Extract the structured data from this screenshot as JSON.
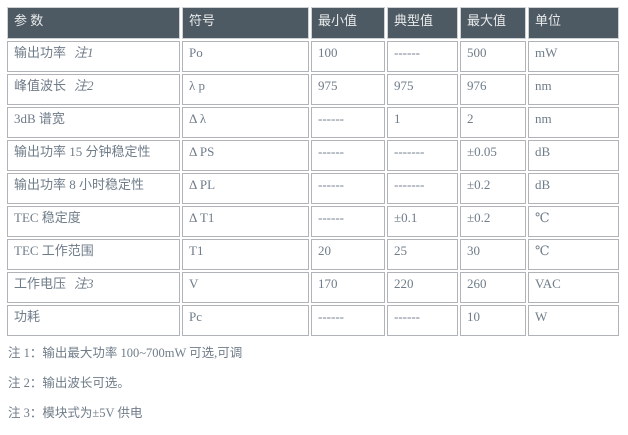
{
  "colors": {
    "header_bg": "#4d5a63",
    "header_text": "#e8eaeb",
    "body_text": "#6f7c89",
    "cell_border": "#b0b4b8"
  },
  "table": {
    "columns": [
      "参 数",
      "符号",
      "最小值",
      "典型值",
      "最大值",
      "单位"
    ],
    "rows": [
      {
        "param": "输出功率",
        "note_ref": "注1",
        "symbol": "Po",
        "min": "100",
        "typ": "------",
        "max": "500",
        "unit": "mW"
      },
      {
        "param": "峰值波长",
        "note_ref": "注2",
        "symbol": "λ p",
        "min": "975",
        "typ": "975",
        "max": "976",
        "unit": "nm"
      },
      {
        "param": "3dB 谱宽",
        "note_ref": "",
        "symbol": "Δ λ",
        "min": "------",
        "typ": "1",
        "max": "2",
        "unit": "nm"
      },
      {
        "param": "输出功率 15 分钟稳定性",
        "note_ref": "",
        "symbol": "Δ PS",
        "min": "------",
        "typ": "-------",
        "max": "±0.05",
        "unit": "dB"
      },
      {
        "param": "输出功率 8 小时稳定性",
        "note_ref": "",
        "symbol": "Δ PL",
        "min": "------",
        "typ": "-------",
        "max": "±0.2",
        "unit": "dB"
      },
      {
        "param": "TEC 稳定度",
        "note_ref": "",
        "symbol": "Δ T1",
        "min": "------",
        "typ": "±0.1",
        "max": "±0.2",
        "unit": "℃"
      },
      {
        "param": "TEC 工作范围",
        "note_ref": "",
        "symbol": "T1",
        "min": "20",
        "typ": "25",
        "max": "30",
        "unit": "℃"
      },
      {
        "param": "工作电压",
        "note_ref": "注3",
        "symbol": "V",
        "min": "170",
        "typ": "220",
        "max": "260",
        "unit": "VAC"
      },
      {
        "param": "功耗",
        "note_ref": "",
        "symbol": "Pc",
        "min": "------",
        "typ": "------",
        "max": "10",
        "unit": "W"
      }
    ]
  },
  "notes": [
    "注 1：输出最大功率 100~700mW 可选,可调",
    "注 2：输出波长可选。",
    "注 3：模块式为±5V 供电"
  ]
}
